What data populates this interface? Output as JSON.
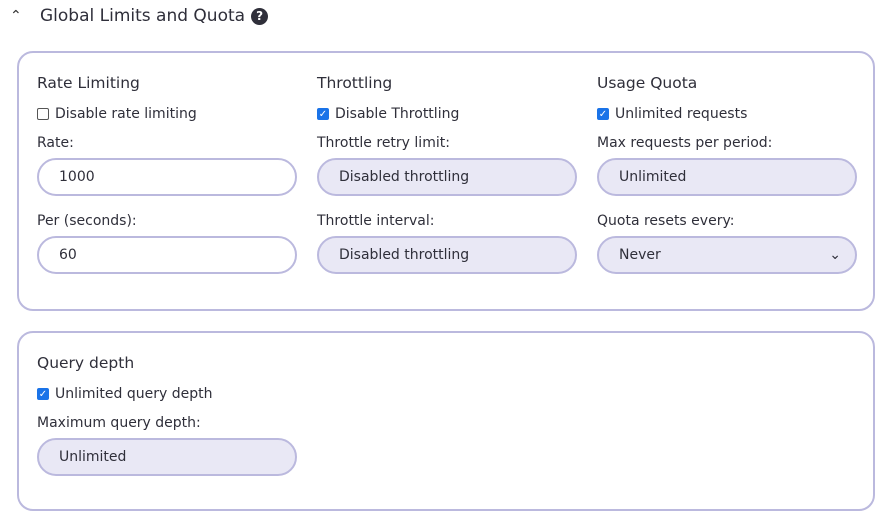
{
  "section": {
    "title": "Global Limits and Quota",
    "collapse_icon": "chevron-up-icon",
    "help_icon": "question-circle-icon"
  },
  "rate_limiting": {
    "heading": "Rate Limiting",
    "checkbox_label": "Disable rate limiting",
    "checked": false,
    "rate_label": "Rate:",
    "rate_value": "1000",
    "per_label": "Per (seconds):",
    "per_value": "60"
  },
  "throttling": {
    "heading": "Throttling",
    "checkbox_label": "Disable Throttling",
    "checked": true,
    "retry_label": "Throttle retry limit:",
    "retry_value": "Disabled throttling",
    "interval_label": "Throttle interval:",
    "interval_value": "Disabled throttling"
  },
  "usage_quota": {
    "heading": "Usage Quota",
    "checkbox_label": "Unlimited requests",
    "checked": true,
    "max_label": "Max requests per period:",
    "max_value": "Unlimited",
    "reset_label": "Quota resets every:",
    "reset_value": "Never"
  },
  "query_depth": {
    "heading": "Query depth",
    "checkbox_label": "Unlimited query depth",
    "checked": true,
    "max_label": "Maximum query depth:",
    "max_value": "Unlimited"
  },
  "colors": {
    "border": "#bbb9de",
    "disabled_fill": "#e9e8f5",
    "checkbox_accent": "#1a73e8"
  }
}
